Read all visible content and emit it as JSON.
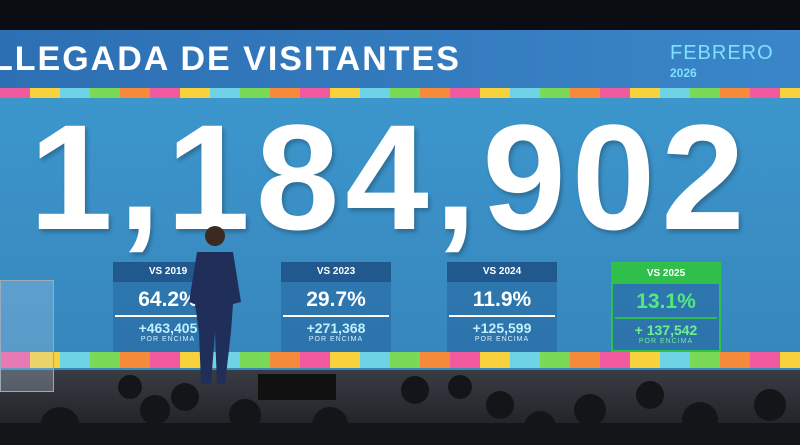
{
  "header": {
    "title": "LLEGADA DE VISITANTES",
    "month": "FEBRERO",
    "year": "2026"
  },
  "headline": "1,184,902",
  "cards": [
    {
      "label": "VS 2019",
      "pct": "64.2%",
      "diff": "+463,405",
      "note": "POR ENCIMA"
    },
    {
      "label": "VS 2023",
      "pct": "29.7%",
      "diff": "+271,368",
      "note": "POR ENCIMA"
    },
    {
      "label": "VS 2024",
      "pct": "11.9%",
      "diff": "+125,599",
      "note": "POR ENCIMA"
    },
    {
      "label": "VS 2025",
      "pct": "13.1%",
      "diff": "+ 137,542",
      "note": "POR ENCIMA"
    }
  ]
}
